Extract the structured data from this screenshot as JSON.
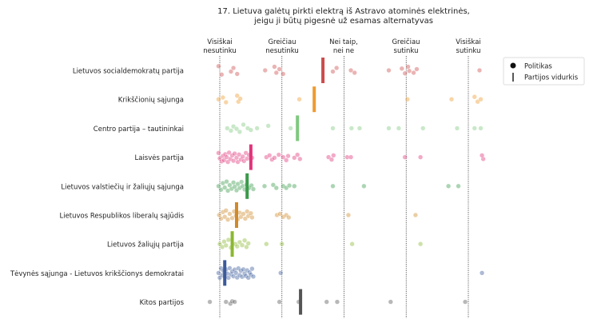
{
  "chart_data": {
    "type": "scatter",
    "title_lines": [
      "17. Lietuva galėtų pirkti elektrą iš Astravo atominės elektrinės,",
      "jeigu ji būtų pigesnė už esamas alternatyvas"
    ],
    "scale_labels": [
      [
        "Visiškai",
        "nesutinku"
      ],
      [
        "Greičiau",
        "nesutinku"
      ],
      [
        "Nei taip,",
        "nei ne"
      ],
      [
        "Greičiau",
        "sutinku"
      ],
      [
        "Visiškai",
        "sutinku"
      ]
    ],
    "xlim": [
      0.72,
      5.28
    ],
    "legend": {
      "position": "top-right",
      "politician_label": "Politikas",
      "mean_label": "Partijos vidurkis"
    },
    "parties": [
      {
        "name": "Lietuvos socialdemokratų partija",
        "color": "#cc4c4c",
        "mean": 2.66,
        "points": [
          [
            0.98,
            -0.35
          ],
          [
            1.03,
            0.35
          ],
          [
            1.18,
            0.1
          ],
          [
            1.22,
            -0.2
          ],
          [
            1.28,
            0.3
          ],
          [
            1.73,
            0.0
          ],
          [
            1.88,
            -0.3
          ],
          [
            1.91,
            0.2
          ],
          [
            1.96,
            -0.1
          ],
          [
            2.02,
            0.3
          ],
          [
            2.82,
            0.1
          ],
          [
            2.88,
            -0.2
          ],
          [
            3.11,
            0.0
          ],
          [
            3.17,
            0.2
          ],
          [
            3.72,
            0.0
          ],
          [
            3.93,
            -0.15
          ],
          [
            3.98,
            0.25
          ],
          [
            4.03,
            -0.3
          ],
          [
            4.05,
            0.05
          ],
          [
            4.12,
            0.2
          ],
          [
            4.17,
            -0.1
          ],
          [
            5.18,
            0.0
          ]
        ]
      },
      {
        "name": "Krikščionių sąjunga",
        "color": "#ef9a2e",
        "mean": 2.52,
        "points": [
          [
            0.98,
            0.0
          ],
          [
            1.05,
            -0.15
          ],
          [
            1.1,
            0.25
          ],
          [
            1.28,
            -0.3
          ],
          [
            1.3,
            0.2
          ],
          [
            1.33,
            -0.05
          ],
          [
            2.28,
            0.0
          ],
          [
            4.02,
            0.0
          ],
          [
            4.73,
            0.0
          ],
          [
            5.1,
            -0.2
          ],
          [
            5.15,
            0.2
          ],
          [
            5.2,
            0.0
          ]
        ]
      },
      {
        "name": "Centro partija – tautininkai",
        "color": "#7ec87e",
        "mean": 2.25,
        "points": [
          [
            1.12,
            0.0
          ],
          [
            1.18,
            0.2
          ],
          [
            1.22,
            -0.15
          ],
          [
            1.27,
            0.05
          ],
          [
            1.32,
            0.3
          ],
          [
            1.38,
            -0.3
          ],
          [
            1.45,
            0.0
          ],
          [
            1.5,
            0.15
          ],
          [
            1.6,
            0.0
          ],
          [
            1.78,
            -0.2
          ],
          [
            2.14,
            0.0
          ],
          [
            2.82,
            0.0
          ],
          [
            3.12,
            0.0
          ],
          [
            3.25,
            0.0
          ],
          [
            3.72,
            0.0
          ],
          [
            3.88,
            0.0
          ],
          [
            4.27,
            0.0
          ],
          [
            4.82,
            0.0
          ],
          [
            5.1,
            0.0
          ],
          [
            5.2,
            0.0
          ]
        ]
      },
      {
        "name": "Laisvės partija",
        "color": "#e0357a",
        "mean": 1.5,
        "points": [
          [
            0.98,
            -0.35
          ],
          [
            1.0,
            0.1
          ],
          [
            1.03,
            0.35
          ],
          [
            1.05,
            -0.1
          ],
          [
            1.07,
            0.25
          ],
          [
            1.09,
            -0.25
          ],
          [
            1.11,
            0.0
          ],
          [
            1.13,
            0.4
          ],
          [
            1.15,
            -0.38
          ],
          [
            1.17,
            0.15
          ],
          [
            1.2,
            -0.15
          ],
          [
            1.22,
            0.3
          ],
          [
            1.24,
            -0.3
          ],
          [
            1.27,
            0.05
          ],
          [
            1.29,
            0.4
          ],
          [
            1.31,
            -0.22
          ],
          [
            1.34,
            0.2
          ],
          [
            1.37,
            -0.05
          ],
          [
            1.39,
            0.32
          ],
          [
            1.42,
            -0.35
          ],
          [
            1.44,
            0.12
          ],
          [
            1.47,
            -0.18
          ],
          [
            1.52,
            0.05
          ],
          [
            1.75,
            0.0
          ],
          [
            1.8,
            -0.15
          ],
          [
            1.84,
            0.2
          ],
          [
            1.88,
            0.05
          ],
          [
            1.95,
            -0.2
          ],
          [
            2.02,
            0.0
          ],
          [
            2.07,
            0.25
          ],
          [
            2.1,
            -0.1
          ],
          [
            2.2,
            0.05
          ],
          [
            2.25,
            -0.2
          ],
          [
            2.29,
            0.15
          ],
          [
            2.75,
            0.0
          ],
          [
            2.8,
            0.2
          ],
          [
            2.83,
            -0.15
          ],
          [
            3.05,
            0.0
          ],
          [
            3.11,
            0.0
          ],
          [
            3.98,
            0.0
          ],
          [
            4.23,
            0.0
          ],
          [
            5.24,
            0.15
          ],
          [
            5.22,
            -0.15
          ]
        ]
      },
      {
        "name": "Lietuvos valstiečių ir žaliųjų sąjunga",
        "color": "#3a9a4a",
        "mean": 1.44,
        "points": [
          [
            0.98,
            0.0
          ],
          [
            1.02,
            0.3
          ],
          [
            1.05,
            -0.25
          ],
          [
            1.08,
            0.12
          ],
          [
            1.11,
            -0.38
          ],
          [
            1.13,
            0.38
          ],
          [
            1.16,
            -0.08
          ],
          [
            1.19,
            0.22
          ],
          [
            1.22,
            -0.3
          ],
          [
            1.24,
            0.05
          ],
          [
            1.27,
            0.35
          ],
          [
            1.29,
            -0.18
          ],
          [
            1.32,
            0.15
          ],
          [
            1.35,
            -0.35
          ],
          [
            1.37,
            0.0
          ],
          [
            1.4,
            0.28
          ],
          [
            1.43,
            -0.12
          ],
          [
            1.47,
            0.15
          ],
          [
            1.51,
            -0.05
          ],
          [
            1.54,
            0.25
          ],
          [
            1.72,
            0.0
          ],
          [
            1.86,
            -0.1
          ],
          [
            1.91,
            0.15
          ],
          [
            2.02,
            0.0
          ],
          [
            2.07,
            0.15
          ],
          [
            2.12,
            -0.05
          ],
          [
            2.2,
            0.0
          ],
          [
            2.82,
            0.0
          ],
          [
            3.32,
            0.0
          ],
          [
            4.68,
            0.0
          ],
          [
            4.84,
            0.0
          ]
        ]
      },
      {
        "name": "Lietuvos Respublikos liberalų sąjūdis",
        "color": "#d08a2a",
        "mean": 1.27,
        "points": [
          [
            0.99,
            0.0
          ],
          [
            1.02,
            0.3
          ],
          [
            1.05,
            -0.25
          ],
          [
            1.08,
            0.15
          ],
          [
            1.1,
            -0.38
          ],
          [
            1.13,
            0.38
          ],
          [
            1.16,
            -0.1
          ],
          [
            1.2,
            0.25
          ],
          [
            1.23,
            -0.3
          ],
          [
            1.26,
            0.05
          ],
          [
            1.29,
            0.35
          ],
          [
            1.32,
            -0.2
          ],
          [
            1.34,
            0.15
          ],
          [
            1.38,
            -0.1
          ],
          [
            1.41,
            0.3
          ],
          [
            1.44,
            -0.3
          ],
          [
            1.46,
            0.08
          ],
          [
            1.5,
            -0.15
          ],
          [
            1.52,
            0.2
          ],
          [
            1.92,
            0.0
          ],
          [
            1.97,
            -0.1
          ],
          [
            2.02,
            0.15
          ],
          [
            2.07,
            0.0
          ],
          [
            2.11,
            0.2
          ],
          [
            3.07,
            0.0
          ],
          [
            4.15,
            0.0
          ]
        ]
      },
      {
        "name": "Lietuvos žaliųjų partija",
        "color": "#8ab830",
        "mean": 1.2,
        "points": [
          [
            1.0,
            0.0
          ],
          [
            1.04,
            0.25
          ],
          [
            1.07,
            -0.2
          ],
          [
            1.1,
            0.12
          ],
          [
            1.14,
            -0.35
          ],
          [
            1.18,
            0.3
          ],
          [
            1.25,
            0.0
          ],
          [
            1.28,
            0.2
          ],
          [
            1.32,
            -0.15
          ],
          [
            1.36,
            0.1
          ],
          [
            1.4,
            -0.3
          ],
          [
            1.43,
            0.25
          ],
          [
            1.46,
            -0.05
          ],
          [
            1.75,
            0.0
          ],
          [
            2.0,
            0.0
          ],
          [
            3.13,
            0.0
          ],
          [
            4.23,
            0.0
          ]
        ]
      },
      {
        "name": "Tėvynės sąjunga - Lietuvos krikščionys demokratai",
        "color": "#3a5a9a",
        "mean": 1.08,
        "points": [
          [
            0.98,
            0.0
          ],
          [
            1.0,
            0.4
          ],
          [
            1.02,
            -0.38
          ],
          [
            1.04,
            0.18
          ],
          [
            1.06,
            -0.18
          ],
          [
            1.08,
            0.32
          ],
          [
            1.1,
            -0.3
          ],
          [
            1.12,
            0.05
          ],
          [
            1.14,
            0.4
          ],
          [
            1.16,
            -0.4
          ],
          [
            1.18,
            0.12
          ],
          [
            1.2,
            -0.12
          ],
          [
            1.22,
            0.28
          ],
          [
            1.24,
            -0.28
          ],
          [
            1.26,
            0.0
          ],
          [
            1.28,
            0.38
          ],
          [
            1.3,
            -0.38
          ],
          [
            1.32,
            0.18
          ],
          [
            1.34,
            -0.18
          ],
          [
            1.36,
            0.32
          ],
          [
            1.38,
            -0.3
          ],
          [
            1.4,
            0.05
          ],
          [
            1.42,
            0.25
          ],
          [
            1.44,
            -0.22
          ],
          [
            1.46,
            0.4
          ],
          [
            1.48,
            -0.05
          ],
          [
            1.5,
            0.15
          ],
          [
            1.52,
            -0.35
          ],
          [
            1.54,
            0.3
          ],
          [
            1.98,
            0.0
          ],
          [
            5.22,
            0.0
          ]
        ]
      },
      {
        "name": "Kitos partijos",
        "color": "#555555",
        "mean": 2.3,
        "points": [
          [
            0.84,
            0.0
          ],
          [
            1.1,
            0.0
          ],
          [
            1.17,
            0.15
          ],
          [
            1.2,
            -0.05
          ],
          [
            1.24,
            0.0
          ],
          [
            1.96,
            0.0
          ],
          [
            2.27,
            0.0
          ],
          [
            2.72,
            0.0
          ],
          [
            2.89,
            0.0
          ],
          [
            3.75,
            0.0
          ],
          [
            4.95,
            0.0
          ]
        ]
      }
    ]
  }
}
